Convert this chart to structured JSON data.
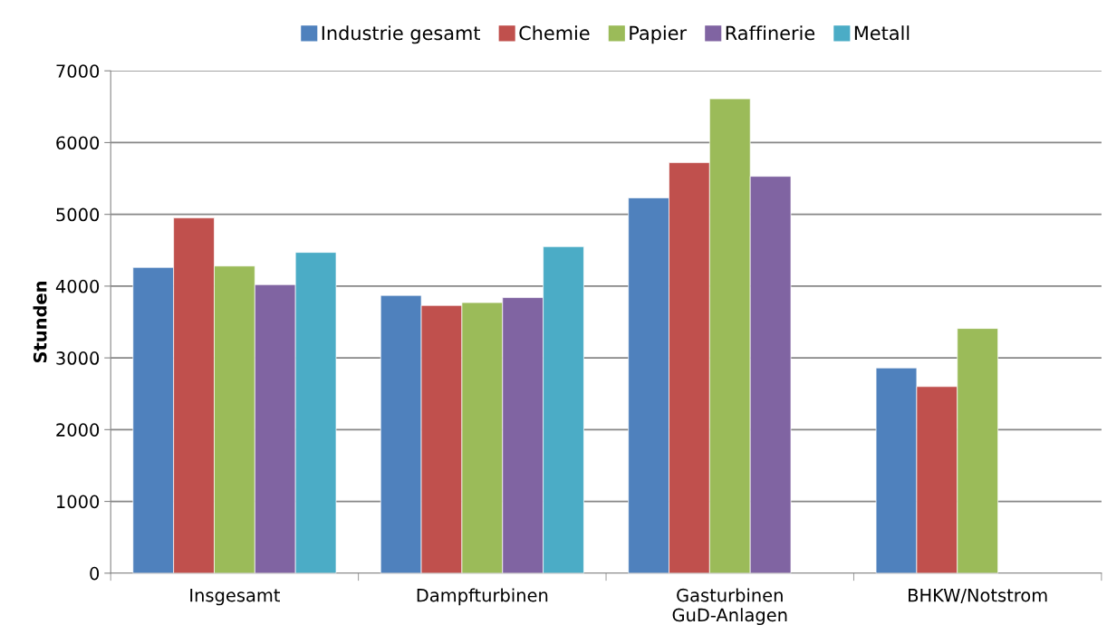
{
  "chart_data": {
    "type": "bar",
    "ylabel": "Stunden",
    "categories": [
      "Insgesamt",
      "Dampfturbinen",
      "Gasturbinen\nGuD-Anlagen",
      "BHKW/Notstrom"
    ],
    "series": [
      {
        "name": "Industrie gesamt",
        "color": "#4f81bd",
        "values": [
          4260,
          3870,
          5230,
          2860
        ]
      },
      {
        "name": "Chemie",
        "color": "#c0504d",
        "values": [
          4950,
          3730,
          5720,
          2600
        ]
      },
      {
        "name": "Papier",
        "color": "#9bbb59",
        "values": [
          4280,
          3770,
          6610,
          3410
        ]
      },
      {
        "name": "Raffinerie",
        "color": "#8064a2",
        "values": [
          4020,
          3840,
          5530,
          null
        ]
      },
      {
        "name": "Metall",
        "color": "#4bacc6",
        "values": [
          4470,
          4550,
          null,
          null
        ]
      }
    ],
    "ylim": [
      0,
      7000
    ],
    "yticks": [
      0,
      1000,
      2000,
      3000,
      4000,
      5000,
      6000,
      7000
    ],
    "grid": "y",
    "legend": "top"
  }
}
